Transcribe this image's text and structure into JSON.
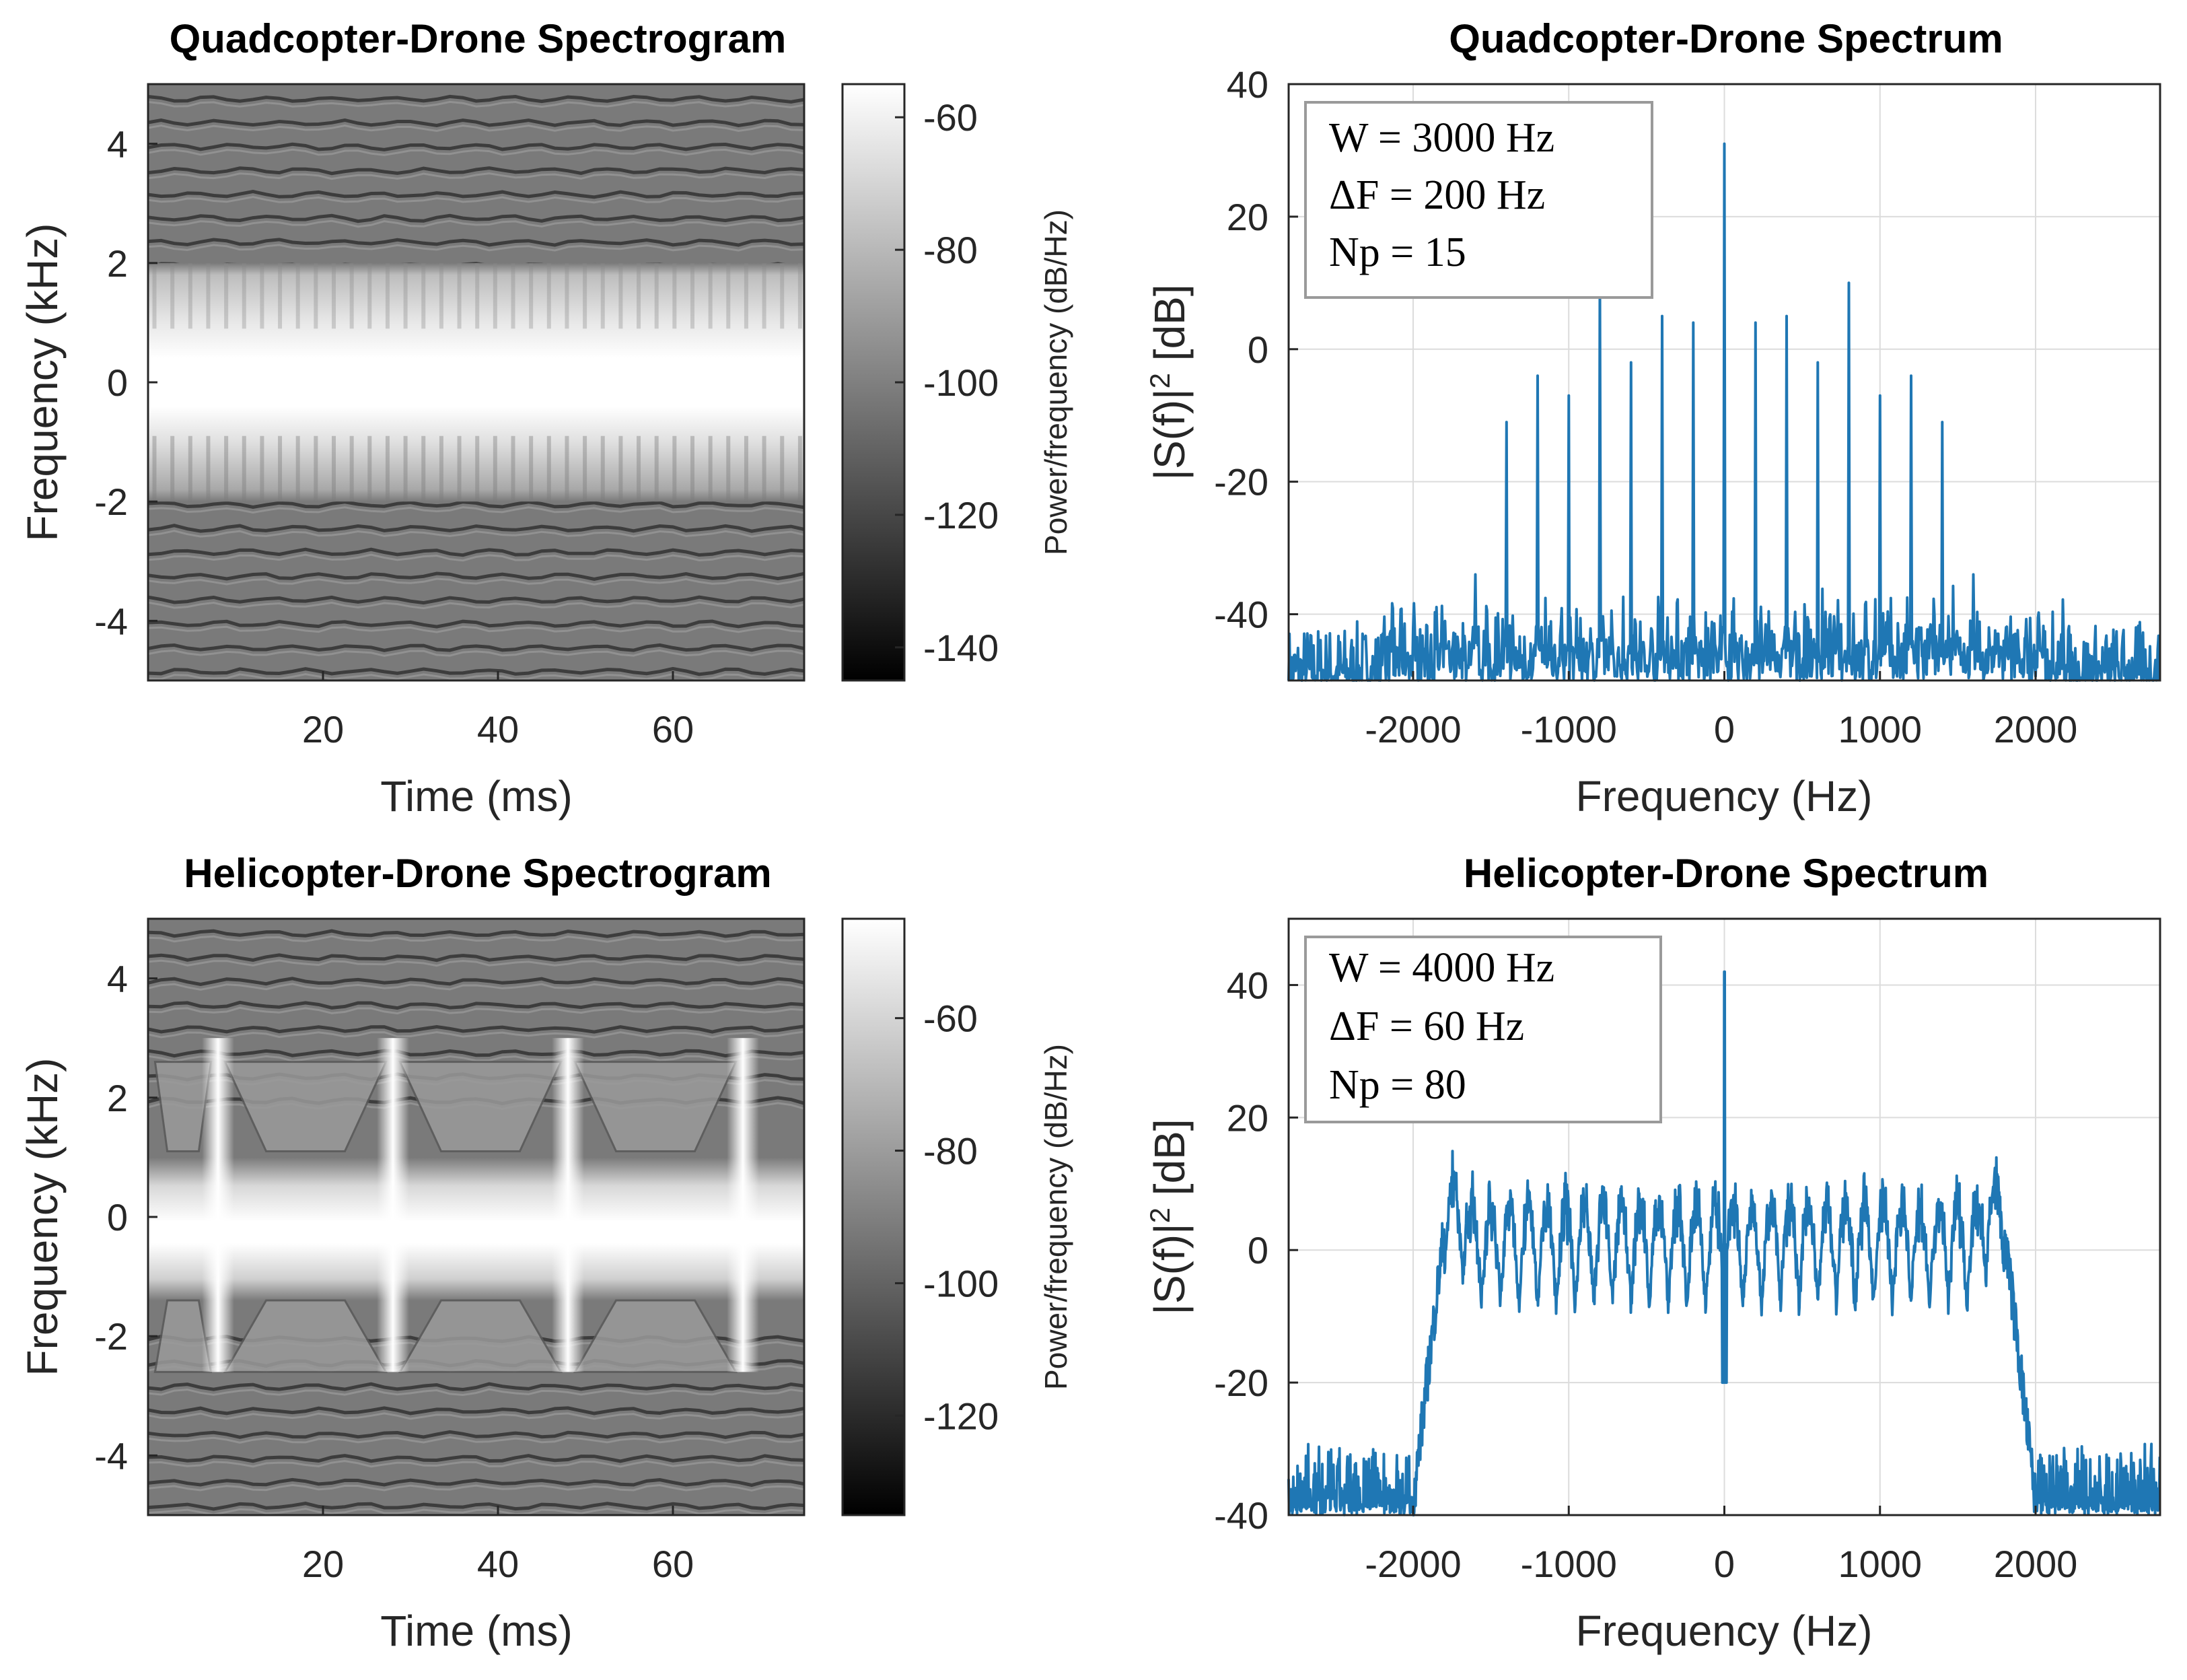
{
  "colors": {
    "line": "#1f77b4",
    "axis": "#262626",
    "grid": "#dcdcdc"
  },
  "chart_data": [
    {
      "id": "quad_spectrogram",
      "type": "heatmap",
      "title": "Quadcopter-Drone Spectrogram",
      "xlabel": "Time (ms)",
      "ylabel": "Frequency (kHz)",
      "xlim": [
        0,
        75
      ],
      "ylim": [
        -5,
        5
      ],
      "xticks": [
        20,
        40,
        60
      ],
      "xtick_labels": [
        "20",
        "40",
        "60"
      ],
      "yticks": [
        4,
        2,
        0,
        -2,
        -4
      ],
      "ytick_labels": [
        "4",
        "2",
        "0",
        "-2",
        "-4"
      ],
      "colorbar": {
        "label": "Power/frequency (dB/Hz)",
        "range": [
          -145,
          -55
        ],
        "ticks": [
          -60,
          -80,
          -100,
          -120,
          -140
        ],
        "tick_labels": [
          "-60",
          "-80",
          "-100",
          "-120",
          "-140"
        ]
      }
    },
    {
      "id": "quad_spectrum",
      "type": "line",
      "title": "Quadcopter-Drone Spectrum",
      "xlabel": "Frequency (Hz)",
      "ylabel": "|S(f)|² [dB]",
      "xlim": [
        -2800,
        2800
      ],
      "ylim": [
        -50,
        40
      ],
      "grid": true,
      "xticks": [
        -2000,
        -1000,
        0,
        1000,
        2000
      ],
      "xtick_labels": [
        "-2000",
        "-1000",
        "0",
        "1000",
        "2000"
      ],
      "yticks": [
        40,
        20,
        0,
        -20,
        -40
      ],
      "ytick_labels": [
        "40",
        "20",
        "0",
        "-20",
        "-40"
      ],
      "legend": {
        "location": "top-left",
        "lines": [
          "W = 3000 Hz",
          "ΔF = 200 Hz",
          "Np = 15"
        ]
      },
      "noise_floor": -50,
      "lines_x": [
        -1800,
        -1600,
        -1400,
        -1200,
        -1000,
        -800,
        -600,
        -400,
        -200,
        0,
        200,
        400,
        600,
        800,
        1000,
        1200,
        1400,
        1600
      ],
      "lines_y": [
        -45,
        -34,
        -11,
        -4,
        -7,
        10,
        -2,
        5,
        4,
        31,
        4,
        5,
        -2,
        10,
        -7,
        -4,
        -11,
        -34
      ]
    },
    {
      "id": "heli_spectrogram",
      "type": "heatmap",
      "title": "Helicopter-Drone Spectrogram",
      "xlabel": "Time (ms)",
      "ylabel": "Frequency (kHz)",
      "xlim": [
        0,
        75
      ],
      "ylim": [
        -5,
        5
      ],
      "xticks": [
        20,
        40,
        60
      ],
      "xtick_labels": [
        "20",
        "40",
        "60"
      ],
      "yticks": [
        4,
        2,
        0,
        -2,
        -4
      ],
      "ytick_labels": [
        "4",
        "2",
        "0",
        "-2",
        "-4"
      ],
      "blade_flash_times_ms": [
        8,
        28,
        48,
        68
      ],
      "colorbar": {
        "label": "Power/frequency (dB/Hz)",
        "range": [
          -135,
          -45
        ],
        "ticks": [
          -60,
          -80,
          -100,
          -120
        ],
        "tick_labels": [
          "-60",
          "-80",
          "-100",
          "-120"
        ]
      }
    },
    {
      "id": "heli_spectrum",
      "type": "line",
      "title": "Helicopter-Drone Spectrum",
      "xlabel": "Frequency (Hz)",
      "ylabel": "|S(f)|² [dB]",
      "xlim": [
        -2800,
        2800
      ],
      "ylim": [
        -40,
        50
      ],
      "grid": true,
      "xticks": [
        -2000,
        -1000,
        0,
        1000,
        2000
      ],
      "xtick_labels": [
        "-2000",
        "-1000",
        "0",
        "1000",
        "2000"
      ],
      "yticks": [
        40,
        20,
        0,
        -20,
        -40
      ],
      "ytick_labels": [
        "40",
        "20",
        "0",
        "-20",
        "-40"
      ],
      "legend": {
        "location": "top-left",
        "lines": [
          "W = 4000 Hz",
          "ΔF = 60 Hz",
          "Np = 80"
        ]
      },
      "band_hz": [
        -1800,
        1800
      ],
      "band_level_db": 3,
      "band_ripple_db": 8,
      "out_of_band_db": -38,
      "center_peak_db": 42,
      "center_notch_db": -20
    }
  ]
}
